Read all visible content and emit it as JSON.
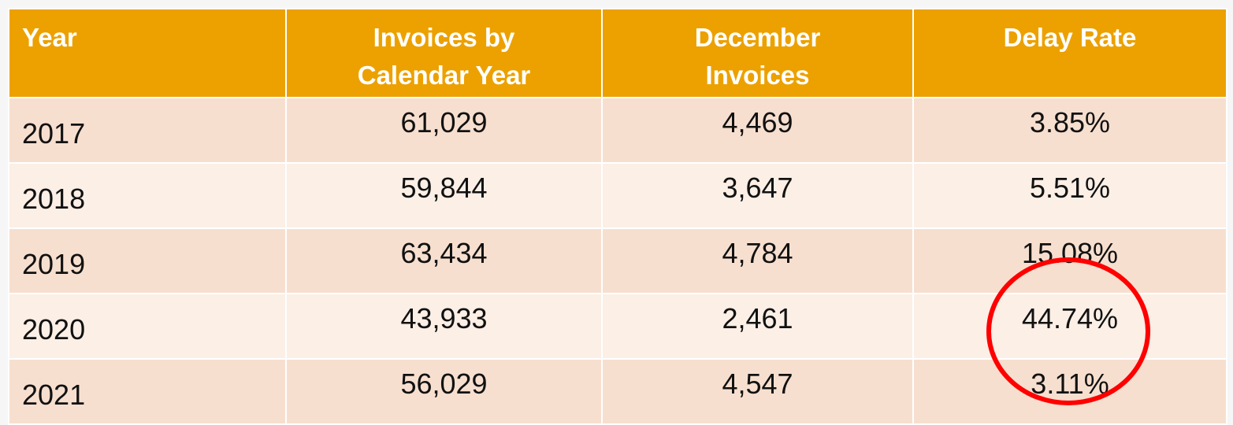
{
  "table": {
    "headers": [
      "Year",
      "Invoices by Calendar Year",
      "December Invoices",
      "Delay Rate"
    ],
    "header_lines": [
      [
        "Year"
      ],
      [
        "Invoices by",
        "Calendar Year"
      ],
      [
        "December",
        "Invoices"
      ],
      [
        "Delay Rate"
      ]
    ],
    "rows": [
      [
        "2017",
        "61,029",
        "4,469",
        "3.85%"
      ],
      [
        "2018",
        "59,844",
        "3,647",
        "5.51%"
      ],
      [
        "2019",
        "63,434",
        "4,784",
        "15.08%"
      ],
      [
        "2020",
        "43,933",
        "2,461",
        "44.74%"
      ],
      [
        "2021",
        "56,029",
        "4,547",
        "3.11%"
      ]
    ]
  },
  "annotation": {
    "shape": "circle",
    "color": "#ff0000",
    "highlights_rows": [
      "2020",
      "2021"
    ],
    "column": "Delay Rate"
  },
  "colors": {
    "header": "#eca100",
    "row_odd": "#f7dfcf",
    "row_even": "#fbefe6"
  }
}
